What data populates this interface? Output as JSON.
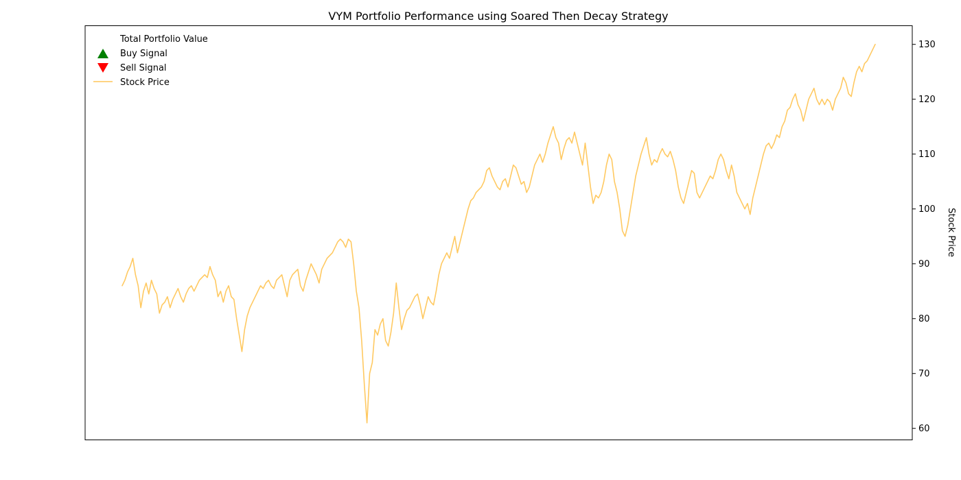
{
  "chart_data": {
    "type": "line",
    "title": "VYM Portfolio Performance using Soared Then Decay Strategy",
    "xlabel": "",
    "y2label": "Stock Price",
    "y2lim": [
      57.9,
      133.4
    ],
    "y2ticks": [
      60,
      70,
      80,
      90,
      100,
      110,
      120,
      130
    ],
    "grid": false,
    "legend": {
      "placement": "top-left",
      "entries": [
        {
          "label": "Total Portfolio Value",
          "marker": "none"
        },
        {
          "label": "Buy Signal",
          "marker": "triangle-up",
          "color": "#008000"
        },
        {
          "label": "Sell Signal",
          "marker": "triangle-down",
          "color": "#ff0000"
        },
        {
          "label": "Stock Price",
          "marker": "line",
          "color": "#ffc658"
        }
      ]
    },
    "series": [
      {
        "name": "Stock Price",
        "color": "#ffc658",
        "axis": "right",
        "values": [
          86,
          87,
          88.5,
          89.5,
          91,
          88,
          86,
          82,
          85,
          86.5,
          84.5,
          87,
          85.5,
          84.5,
          81,
          82.5,
          83,
          84,
          82,
          83.5,
          84.5,
          85.5,
          84,
          83,
          84.5,
          85.5,
          86,
          85,
          86,
          87,
          87.5,
          88,
          87.5,
          89.5,
          88,
          87,
          84,
          85,
          83,
          85,
          86,
          84,
          83.5,
          80,
          77,
          74,
          78,
          80.5,
          82,
          83,
          84,
          85,
          86,
          85.5,
          86.5,
          87,
          86,
          85.5,
          87,
          87.5,
          88,
          86,
          84,
          87,
          88,
          88.5,
          89,
          86,
          85,
          87,
          88.5,
          90,
          89,
          88,
          86.5,
          89,
          90,
          91,
          91.5,
          92,
          93,
          94,
          94.5,
          94,
          93,
          94.5,
          94,
          90,
          85,
          82,
          76,
          68,
          61,
          70,
          72,
          78,
          77,
          79,
          80,
          76,
          75,
          77.5,
          81,
          86.5,
          82,
          78,
          80,
          81.5,
          82,
          83,
          84,
          84.5,
          82.5,
          80,
          82,
          84,
          83,
          82.5,
          85,
          88,
          90,
          91,
          92,
          91,
          93,
          95,
          92,
          94,
          96,
          98,
          100,
          101.5,
          102,
          103,
          103.5,
          104,
          105,
          107,
          107.5,
          106,
          105,
          104,
          103.5,
          105,
          105.5,
          104,
          106,
          108,
          107.5,
          106,
          104.5,
          105,
          103,
          104,
          106,
          108,
          109,
          110,
          108.5,
          110,
          112,
          113.5,
          115,
          113,
          112,
          109,
          111,
          112.5,
          113,
          112,
          114,
          112,
          110,
          108,
          112,
          108,
          104,
          101,
          102.5,
          102,
          103,
          105,
          108,
          110,
          109,
          105,
          103,
          100,
          96,
          95,
          97,
          100,
          103,
          106,
          108,
          110,
          111.5,
          113,
          110,
          108,
          109,
          108.5,
          110,
          111,
          110,
          109.5,
          110.5,
          109,
          107,
          104,
          102,
          101,
          103,
          105,
          107,
          106.5,
          103,
          102,
          103,
          104,
          105,
          106,
          105.5,
          107,
          109,
          110,
          109,
          107,
          105.5,
          108,
          106,
          103,
          102,
          101,
          100,
          101,
          99,
          102,
          104,
          106,
          108,
          110,
          111.5,
          112,
          111,
          112,
          113.5,
          113,
          115,
          116,
          118,
          118.5,
          120,
          121,
          119,
          118,
          116,
          118,
          120,
          121,
          122,
          120,
          119,
          120,
          119,
          120,
          119.5,
          118,
          120,
          121,
          122,
          124,
          123,
          121,
          120.5,
          123,
          125,
          126,
          125,
          126.5,
          127,
          128,
          129,
          130
        ]
      }
    ]
  }
}
